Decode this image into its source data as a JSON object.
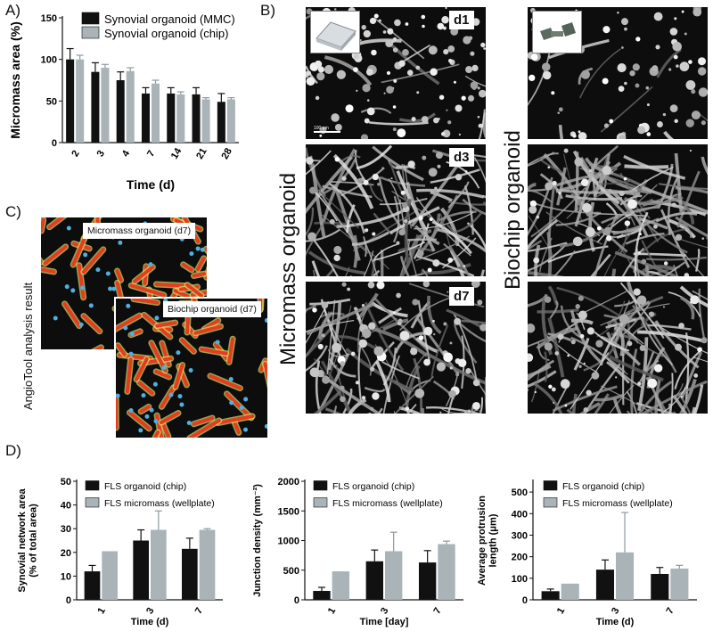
{
  "panels": {
    "a": "A)",
    "b": "B)",
    "c": "C)",
    "d": "D)"
  },
  "panelB": {
    "left_title": "Micromass organoid",
    "right_title": "Biochip organoid",
    "days": [
      "d1",
      "d3",
      "d7"
    ],
    "scalebar": "100 μm"
  },
  "panelC": {
    "side_label": "AngioTool analysis result",
    "micromass_tag": "Micromass organoid (d7)",
    "biochip_tag": "Biochip organoid (d7)"
  },
  "colors": {
    "dark": "#111111",
    "light": "#a9b3b8"
  },
  "chart_data": [
    {
      "type": "bar",
      "panel": "A",
      "categories": [
        "2",
        "3",
        "4",
        "7",
        "14",
        "21",
        "28"
      ],
      "series": [
        {
          "name": "Synovial organoid (MMC)",
          "color": "#111111",
          "values": [
            100,
            85,
            75,
            59,
            59,
            58,
            49
          ],
          "errors": [
            13,
            11,
            10,
            7,
            7,
            8,
            10
          ]
        },
        {
          "name": "Synovial organoid (chip)",
          "color": "#a9b3b8",
          "values": [
            100,
            90,
            86,
            71,
            58,
            52,
            52
          ],
          "errors": [
            5,
            4,
            4,
            4,
            3,
            2,
            2
          ]
        }
      ],
      "xlabel": "Time (d)",
      "ylabel": "Micromass area (%)",
      "ylim": [
        0,
        150
      ],
      "yticks": [
        0,
        50,
        100,
        150
      ],
      "legend": "top"
    },
    {
      "type": "bar",
      "panel": "D1",
      "categories": [
        "1",
        "3",
        "7"
      ],
      "series": [
        {
          "name": "FLS organoid (chip)",
          "color": "#111111",
          "values": [
            12,
            25,
            21.5
          ],
          "errors": [
            2.5,
            4.5,
            4.5
          ]
        },
        {
          "name": "FLS micromass (wellplate)",
          "color": "#a9b3b8",
          "values": [
            20.5,
            29.5,
            29.5
          ],
          "errors": [
            0,
            8,
            0.5
          ]
        }
      ],
      "xlabel": "Time (d)",
      "ylabel": "Synovial network area\n(% of total area)",
      "ylim": [
        0,
        50
      ],
      "yticks": [
        0,
        10,
        20,
        30,
        40,
        50
      ],
      "legend": "top"
    },
    {
      "type": "bar",
      "panel": "D2",
      "categories": [
        "1",
        "3",
        "7"
      ],
      "series": [
        {
          "name": "FLS organoid (chip)",
          "color": "#111111",
          "values": [
            150,
            650,
            630
          ],
          "errors": [
            60,
            190,
            200
          ]
        },
        {
          "name": "FLS micromass (wellplate)",
          "color": "#a9b3b8",
          "values": [
            480,
            820,
            940
          ],
          "errors": [
            0,
            320,
            50
          ]
        }
      ],
      "xlabel": "Time [day]",
      "ylabel": "Junction density (mm⁻²)",
      "ylim": [
        0,
        2000
      ],
      "yticks": [
        0,
        500,
        1000,
        1500,
        2000
      ],
      "legend": "top"
    },
    {
      "type": "bar",
      "panel": "D3",
      "categories": [
        "1",
        "3",
        "7"
      ],
      "series": [
        {
          "name": "FLS organoid (chip)",
          "color": "#111111",
          "values": [
            40,
            140,
            120
          ],
          "errors": [
            10,
            45,
            30
          ]
        },
        {
          "name": "FLS micromass (wellplate)",
          "color": "#a9b3b8",
          "values": [
            75,
            220,
            145
          ],
          "errors": [
            0,
            185,
            15
          ]
        }
      ],
      "xlabel": "Time (d)",
      "ylabel": "Average protrusion\nlength (μm)",
      "ylim": [
        0,
        550
      ],
      "yticks": [
        0,
        100,
        200,
        300,
        400,
        500
      ],
      "legend": "top"
    }
  ]
}
